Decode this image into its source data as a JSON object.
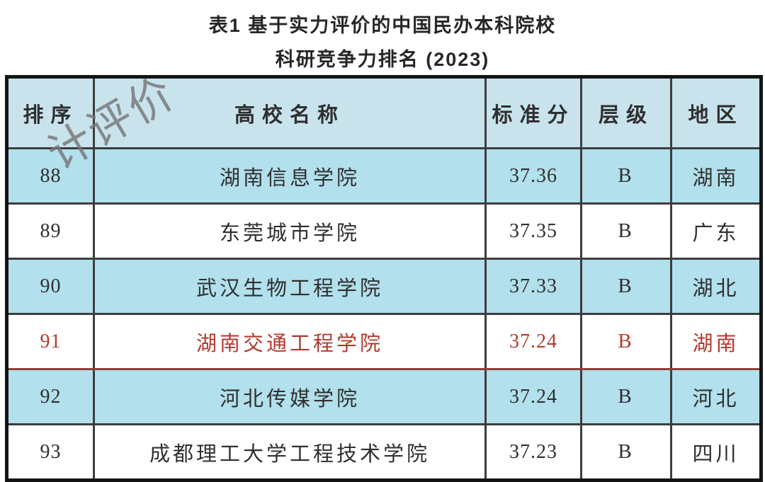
{
  "title": {
    "line1": "表1  基于实力评价的中国民办本科院校",
    "line2": "科研竞争力排名 (2023)"
  },
  "watermark": {
    "text": "计评价"
  },
  "table": {
    "columns": [
      {
        "label": "排序"
      },
      {
        "label": "高校名称"
      },
      {
        "label": "标准分"
      },
      {
        "label": "层级"
      },
      {
        "label": "地区"
      }
    ],
    "rows": [
      {
        "rank": "88",
        "name": "湖南信息学院",
        "score": "37.36",
        "level": "B",
        "region": "湖南",
        "shaded": true,
        "highlight": false
      },
      {
        "rank": "89",
        "name": "东莞城市学院",
        "score": "37.35",
        "level": "B",
        "region": "广东",
        "shaded": false,
        "highlight": false
      },
      {
        "rank": "90",
        "name": "武汉生物工程学院",
        "score": "37.33",
        "level": "B",
        "region": "湖北",
        "shaded": true,
        "highlight": false
      },
      {
        "rank": "91",
        "name": "湖南交通工程学院",
        "score": "37.24",
        "level": "B",
        "region": "湖南",
        "shaded": false,
        "highlight": true
      },
      {
        "rank": "92",
        "name": "河北传媒学院",
        "score": "37.24",
        "level": "B",
        "region": "河北",
        "shaded": true,
        "highlight": false
      },
      {
        "rank": "93",
        "name": "成都理工大学工程技术学院",
        "score": "37.23",
        "level": "B",
        "region": "四川",
        "shaded": false,
        "highlight": false
      }
    ]
  },
  "colors": {
    "header_bg": "#c8e3ec",
    "row_shade": "#b2e0ec",
    "inner_border": "#3d3d3d",
    "outer_border": "#141414",
    "highlight_text": "#b23a2e",
    "watermark_gray": "#777777"
  }
}
